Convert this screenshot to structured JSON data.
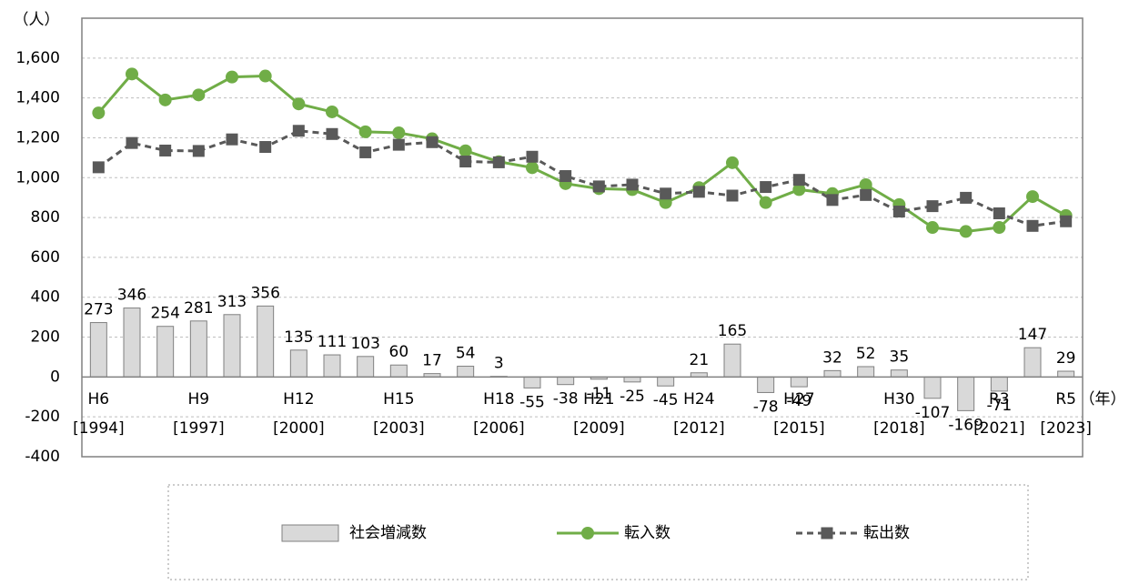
{
  "chart_data": {
    "type": "bar",
    "y_label": "（人）",
    "x_unit": "（年）",
    "categories": [
      "H6",
      null,
      null,
      "H9",
      null,
      null,
      "H12",
      null,
      null,
      "H15",
      null,
      null,
      "H18",
      null,
      null,
      "H21",
      null,
      null,
      "H24",
      null,
      null,
      "H27",
      null,
      null,
      "H30",
      null,
      null,
      "R3",
      null,
      "R5"
    ],
    "categories_sub": [
      "[1994]",
      null,
      null,
      "[1997]",
      null,
      null,
      "[2000]",
      null,
      null,
      "[2003]",
      null,
      null,
      "[2006]",
      null,
      null,
      "[2009]",
      null,
      null,
      "[2012]",
      null,
      null,
      "[2015]",
      null,
      null,
      "[2018]",
      null,
      null,
      "[2021]",
      null,
      "[2023]"
    ],
    "ylim": [
      -400,
      1800
    ],
    "yticks": [
      -400,
      -200,
      0,
      200,
      400,
      600,
      800,
      {
        "value": 1000,
        "label": "1,000"
      },
      {
        "value": 1200,
        "label": "1,200"
      },
      {
        "value": 1400,
        "label": "1,400"
      },
      {
        "value": 1600,
        "label": "1,600"
      }
    ],
    "grid": true,
    "negative_color": "#ff0000",
    "series": [
      {
        "name": "社会増減数",
        "type": "bar",
        "color": "#d9d9d9",
        "edge": "#808080",
        "values": [
          273,
          346,
          254,
          281,
          313,
          356,
          135,
          111,
          103,
          60,
          17,
          54,
          3,
          -55,
          -38,
          -11,
          -25,
          -45,
          21,
          165,
          -78,
          -49,
          32,
          52,
          35,
          -107,
          -169,
          -71,
          147,
          29
        ]
      },
      {
        "name": "転入数",
        "type": "line",
        "color": "#70ad47",
        "marker": "circle",
        "dashed": false,
        "values": [
          1325,
          1520,
          1390,
          1415,
          1505,
          1510,
          1370,
          1330,
          1230,
          1225,
          1195,
          1135,
          1080,
          1050,
          970,
          945,
          940,
          875,
          950,
          1075,
          875,
          940,
          920,
          965,
          865,
          750,
          730,
          750,
          905,
          810
        ]
      },
      {
        "name": "転出数",
        "type": "line",
        "color": "#595959",
        "marker": "square",
        "dashed": true,
        "values": [
          1052,
          1174,
          1136,
          1134,
          1192,
          1154,
          1235,
          1219,
          1127,
          1165,
          1178,
          1081,
          1077,
          1105,
          1008,
          956,
          965,
          920,
          929,
          910,
          953,
          989,
          888,
          913,
          830,
          857,
          899,
          821,
          758,
          781
        ]
      }
    ]
  }
}
